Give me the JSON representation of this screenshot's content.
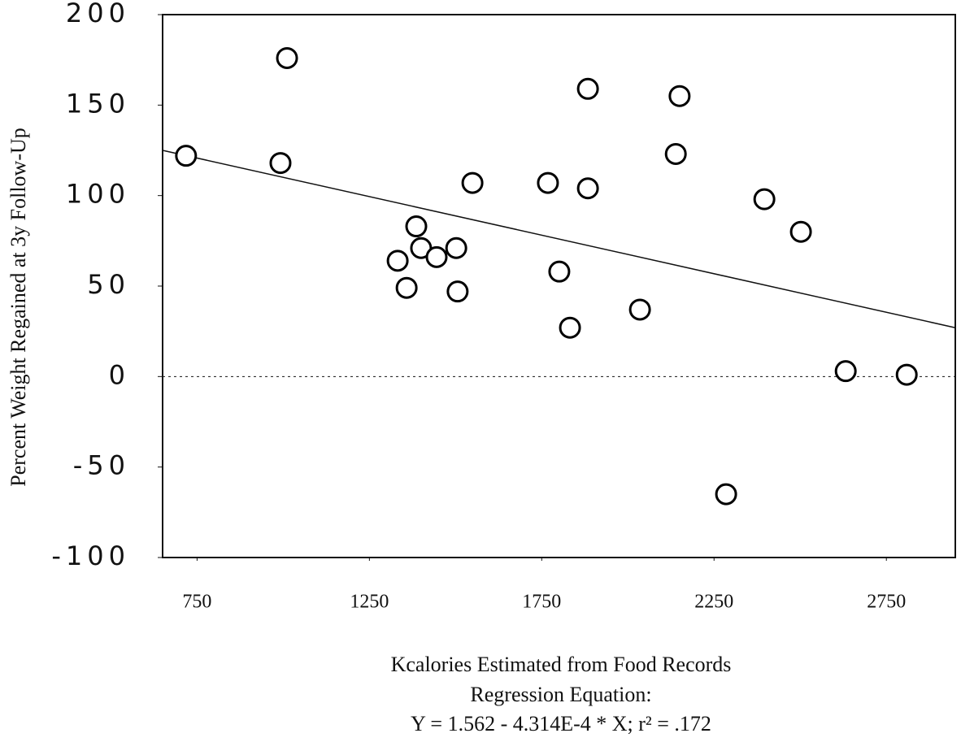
{
  "chart_data": {
    "type": "scatter",
    "x_label": "Kcalories Estimated from Food Records",
    "subtitle": "Regression Equation:",
    "annotation": "Y = 1.562 - 4.314E-4 * X; r² = .172",
    "y_label": "Percent Weight Regained at 3y Follow-Up",
    "x": [
      718,
      992,
      1011,
      1332,
      1358,
      1386,
      1400,
      1445,
      1502,
      1506,
      1549,
      1768,
      1801,
      1832,
      1884,
      1884,
      2035,
      2139,
      2150,
      2285,
      2396,
      2502,
      2632,
      2809
    ],
    "values": [
      122,
      118,
      176,
      64,
      49,
      83,
      71,
      66,
      71,
      47,
      107,
      107,
      58,
      27,
      159,
      104,
      37,
      123,
      155,
      -65,
      98,
      80,
      3,
      1
    ],
    "color": "#000000",
    "trend_line": {
      "x": [
        650,
        2950
      ],
      "y": [
        125,
        27
      ]
    },
    "reference_line": 0,
    "xlim": [
      650,
      2950
    ],
    "xticks": [
      750,
      1250,
      1750,
      2250,
      2750
    ],
    "ylim": [
      -100,
      200
    ],
    "yticks": [
      200,
      150,
      100,
      50,
      0,
      -50,
      -100
    ]
  }
}
